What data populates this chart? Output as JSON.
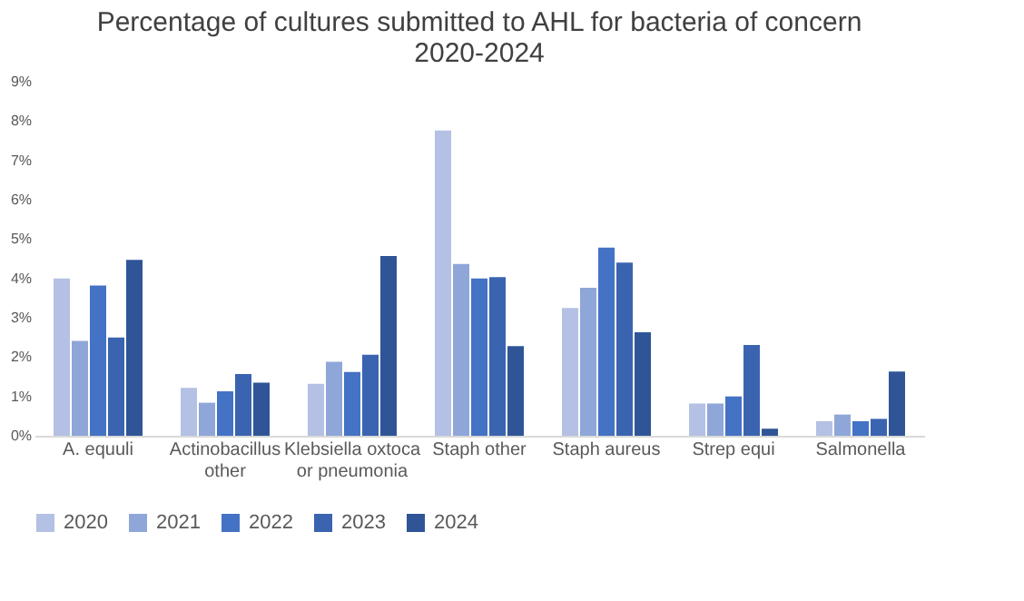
{
  "chart_data": {
    "type": "bar",
    "title": [
      "Percentage of cultures  submitted to AHL for bacteria of concern",
      "2020-2024"
    ],
    "categories": [
      "A. equuli",
      "Actinobacillus other",
      "Klebsiella oxtoca or pneumonia",
      "Staph other",
      "Staph aureus",
      "Strep equi",
      "Salmonella"
    ],
    "series": [
      {
        "name": "2020",
        "color": "#b4c1e4",
        "values": [
          4.0,
          1.22,
          1.32,
          7.76,
          3.25,
          0.82,
          0.37
        ]
      },
      {
        "name": "2021",
        "color": "#8fa6d8",
        "values": [
          2.41,
          0.84,
          1.88,
          4.37,
          3.76,
          0.82,
          0.54
        ]
      },
      {
        "name": "2022",
        "color": "#4472c4",
        "values": [
          3.82,
          1.13,
          1.62,
          4.0,
          4.78,
          1.0,
          0.37
        ]
      },
      {
        "name": "2023",
        "color": "#3a64b0",
        "values": [
          2.5,
          1.57,
          2.06,
          4.03,
          4.4,
          2.31,
          0.43
        ]
      },
      {
        "name": "2024",
        "color": "#2f5597",
        "values": [
          4.47,
          1.35,
          4.57,
          2.28,
          2.63,
          0.18,
          1.63
        ]
      }
    ],
    "ylim": [
      0,
      9
    ],
    "yticks": [
      {
        "value": 0,
        "label": "0%"
      },
      {
        "value": 1,
        "label": "1%"
      },
      {
        "value": 2,
        "label": "2%"
      },
      {
        "value": 3,
        "label": "3%"
      },
      {
        "value": 4,
        "label": "4%"
      },
      {
        "value": 5,
        "label": "5%"
      },
      {
        "value": 6,
        "label": "6%"
      },
      {
        "value": 7,
        "label": "7%"
      },
      {
        "value": 8,
        "label": "8%"
      },
      {
        "value": 9,
        "label": "9%"
      }
    ],
    "grid": false,
    "legend": "bottom"
  }
}
